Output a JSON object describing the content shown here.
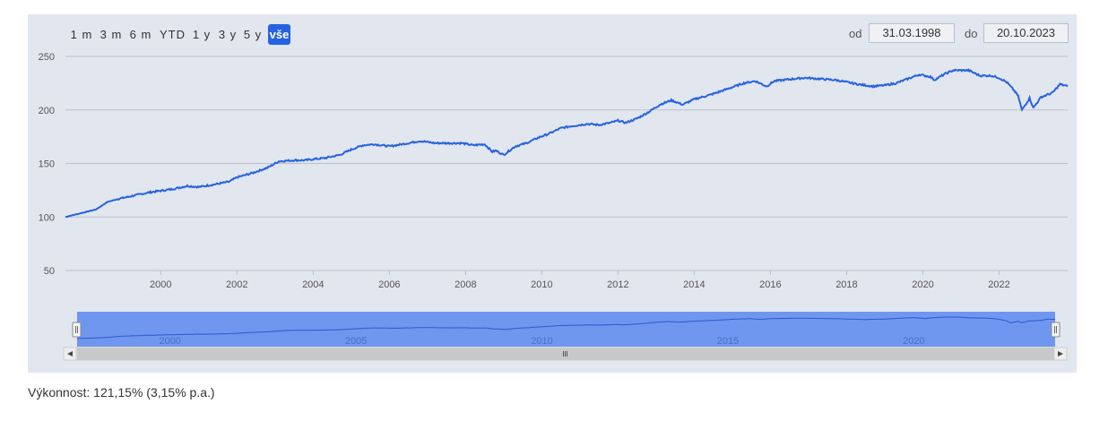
{
  "range_selector": {
    "buttons": [
      "1 m",
      "3 m",
      "6 m",
      "YTD",
      "1 y",
      "3 y",
      "5 y",
      "vše"
    ],
    "active": "vše"
  },
  "date_range": {
    "from_label": "od",
    "from_value": "31.03.1998",
    "to_label": "do",
    "to_value": "20.10.2023"
  },
  "navigator": {
    "tick_labels": [
      "2000",
      "2005",
      "2010",
      "2015",
      "2020"
    ],
    "handle_glyph": "||",
    "scroll_left_icon": "triangle-left",
    "scroll_right_icon": "triangle-right",
    "grip_glyph": "III"
  },
  "footer": {
    "performance_text": "Výkonnost: 121,15% (3,15% p.a.)"
  },
  "colors": {
    "line": "#2563e0",
    "panel_bg": "#e2e6ee",
    "navigator_fill": "#6f97ef",
    "active_button": "#2563e0"
  },
  "chart_data": {
    "type": "line",
    "title": "",
    "xlabel": "",
    "ylabel": "",
    "ylim": [
      50,
      250
    ],
    "xlim": [
      1997.5,
      2023.8
    ],
    "y_ticks": [
      50,
      100,
      150,
      200,
      250
    ],
    "x_ticks": [
      2000,
      2002,
      2004,
      2006,
      2008,
      2010,
      2012,
      2014,
      2016,
      2018,
      2020,
      2022
    ],
    "grid": true,
    "legend": "none",
    "series": [
      {
        "x": [
          1997.5,
          1998.3,
          1998.6,
          1998.9,
          1999.3,
          1999.7,
          2000.3,
          2000.7,
          2001.0,
          2001.5,
          2001.8,
          2002.0,
          2002.4,
          2002.8,
          2003.1,
          2003.5,
          2003.8,
          2004.0,
          2004.3,
          2004.7,
          2005.0,
          2005.3,
          2005.6,
          2006.0,
          2006.5,
          2006.8,
          2007.2,
          2007.5,
          2007.9,
          2008.2,
          2008.5,
          2008.7,
          2008.8,
          2009.0,
          2009.3,
          2009.6,
          2009.9,
          2010.2,
          2010.5,
          2010.8,
          2011.2,
          2011.5,
          2011.8,
          2012.0,
          2012.2,
          2012.5,
          2012.8,
          2013.1,
          2013.4,
          2013.7,
          2014.0,
          2014.5,
          2014.9,
          2015.3,
          2015.6,
          2015.9,
          2016.1,
          2016.6,
          2016.9,
          2017.3,
          2017.7,
          2018.0,
          2018.3,
          2018.7,
          2019.0,
          2019.3,
          2019.6,
          2019.9,
          2020.2,
          2020.3,
          2020.6,
          2020.8,
          2021.2,
          2021.5,
          2021.8,
          2022.0,
          2022.2,
          2022.4,
          2022.5,
          2022.6,
          2022.8,
          2022.9,
          2023.1,
          2023.4,
          2023.6,
          2023.8
        ],
        "values": [
          100,
          107,
          114,
          117,
          120,
          123,
          126,
          129,
          128,
          131,
          133,
          137,
          141,
          146,
          152,
          153,
          153,
          154,
          155,
          158,
          163,
          167,
          168,
          166,
          169,
          171,
          169,
          169,
          169,
          167,
          168,
          161,
          162,
          158,
          166,
          169,
          174,
          178,
          183,
          185,
          187,
          186,
          188,
          190,
          188,
          192,
          198,
          205,
          209,
          205,
          210,
          215,
          220,
          225,
          227,
          222,
          227,
          229,
          230,
          229,
          228,
          226,
          224,
          222,
          223,
          225,
          229,
          233,
          231,
          228,
          234,
          237,
          237,
          232,
          232,
          230,
          226,
          218,
          213,
          200,
          211,
          202,
          212,
          216,
          224,
          222
        ]
      }
    ]
  }
}
